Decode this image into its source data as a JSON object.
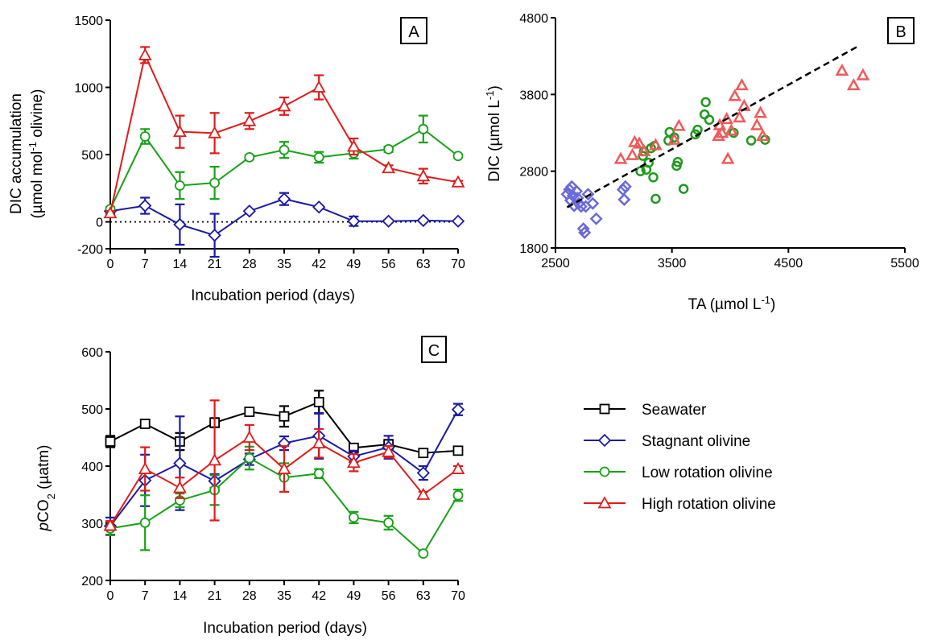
{
  "colors": {
    "seawater": "#000000",
    "stagnant": "#1a1aa8",
    "low_rotation": "#17a117",
    "high_rotation": "#e01b1b",
    "scatter_stagnant": "#6a6ad8",
    "scatter_low": "#1e9a1e",
    "scatter_high": "#ef5a5a"
  },
  "legend": {
    "entries": [
      {
        "key": "seawater",
        "label": "Seawater",
        "marker": "square"
      },
      {
        "key": "stagnant",
        "label": "Stagnant olivine",
        "marker": "diamond"
      },
      {
        "key": "low_rotation",
        "label": "Low rotation olivine",
        "marker": "circle"
      },
      {
        "key": "high_rotation",
        "label": "High rotation olivine",
        "marker": "triangle"
      }
    ]
  },
  "chart_data": [
    {
      "panel": "A",
      "type": "line",
      "xlabel": "Incubation period (days)",
      "ylabel": "DIC accumulation",
      "ylabel_unit": "(µmol mol",
      "ylabel_sup": "-1",
      "ylabel_unit_end": " olivine)",
      "x_ticks": [
        "0",
        "7",
        "14",
        "21",
        "28",
        "35",
        "42",
        "49",
        "56",
        "63",
        "70"
      ],
      "y_ticks": [
        "-200",
        "0",
        "500",
        "1000",
        "1500"
      ],
      "xlim": [
        0,
        70
      ],
      "ylim": [
        -200,
        1500
      ],
      "zero_line": true,
      "x": [
        0,
        7,
        14,
        21,
        28,
        35,
        42,
        49,
        56,
        63,
        70
      ],
      "series": [
        {
          "key": "stagnant",
          "marker": "diamond",
          "values": [
            80,
            120,
            -20,
            -100,
            80,
            170,
            110,
            5,
            5,
            10,
            5
          ],
          "errors": [
            20,
            60,
            150,
            160,
            10,
            45,
            10,
            35,
            10,
            10,
            5
          ]
        },
        {
          "key": "low_rotation",
          "marker": "circle",
          "values": [
            95,
            635,
            270,
            290,
            480,
            535,
            480,
            510,
            540,
            690,
            490
          ],
          "errors": [
            15,
            55,
            100,
            120,
            15,
            60,
            40,
            40,
            20,
            100,
            10
          ]
        },
        {
          "key": "high_rotation",
          "marker": "triangle",
          "values": [
            65,
            1240,
            670,
            660,
            750,
            860,
            1000,
            560,
            400,
            340,
            295
          ],
          "errors": [
            15,
            60,
            120,
            150,
            60,
            65,
            90,
            60,
            20,
            55,
            10
          ]
        }
      ]
    },
    {
      "panel": "B",
      "type": "scatter",
      "xlabel": "TA (µmol L",
      "xlabel_sup": "-1",
      "xlabel_end": ")",
      "ylabel": "DIC (µmol L",
      "ylabel_sup": "-1",
      "ylabel_end": ")",
      "x_ticks": [
        "2500",
        "3500",
        "4500",
        "5500"
      ],
      "y_ticks": [
        "1800",
        "2800",
        "3800",
        "4800"
      ],
      "xlim": [
        2500,
        5500
      ],
      "ylim": [
        1800,
        4800
      ],
      "trendline": {
        "x": [
          2600,
          5100
        ],
        "y": [
          2330,
          4430
        ]
      },
      "series": [
        {
          "key": "scatter_stagnant",
          "marker": "diamond",
          "points": [
            [
              2600,
              2500
            ],
            [
              2620,
              2560
            ],
            [
              2630,
              2420
            ],
            [
              2640,
              2600
            ],
            [
              2650,
              2480
            ],
            [
              2660,
              2350
            ],
            [
              2680,
              2540
            ],
            [
              2690,
              2450
            ],
            [
              2700,
              2380
            ],
            [
              2720,
              2340
            ],
            [
              2740,
              2050
            ],
            [
              2750,
              2000
            ],
            [
              2760,
              2340
            ],
            [
              2780,
              2500
            ],
            [
              2820,
              2380
            ],
            [
              2850,
              2180
            ],
            [
              3080,
              2560
            ],
            [
              3090,
              2430
            ],
            [
              3100,
              2600
            ]
          ]
        },
        {
          "key": "scatter_low",
          "marker": "circle",
          "points": [
            [
              3230,
              2800
            ],
            [
              3250,
              3000
            ],
            [
              3260,
              3060
            ],
            [
              3280,
              2820
            ],
            [
              3300,
              2910
            ],
            [
              3320,
              3100
            ],
            [
              3340,
              2720
            ],
            [
              3350,
              3130
            ],
            [
              3360,
              2440
            ],
            [
              3470,
              3200
            ],
            [
              3480,
              3310
            ],
            [
              3520,
              3240
            ],
            [
              3540,
              2870
            ],
            [
              3550,
              2920
            ],
            [
              3600,
              2570
            ],
            [
              3700,
              3280
            ],
            [
              3720,
              3340
            ],
            [
              3780,
              3540
            ],
            [
              3790,
              3700
            ],
            [
              3820,
              3470
            ],
            [
              4030,
              3300
            ],
            [
              4180,
              3200
            ],
            [
              4300,
              3210
            ]
          ]
        },
        {
          "key": "scatter_high",
          "marker": "triangle",
          "points": [
            [
              3060,
              2960
            ],
            [
              3160,
              3010
            ],
            [
              3180,
              3180
            ],
            [
              3220,
              3160
            ],
            [
              3260,
              3060
            ],
            [
              3360,
              3140
            ],
            [
              3520,
              3210
            ],
            [
              3560,
              3390
            ],
            [
              3900,
              3260
            ],
            [
              3910,
              3400
            ],
            [
              3930,
              3300
            ],
            [
              3970,
              3480
            ],
            [
              3980,
              2960
            ],
            [
              4010,
              3330
            ],
            [
              4040,
              3780
            ],
            [
              4080,
              3500
            ],
            [
              4100,
              3920
            ],
            [
              4120,
              3650
            ],
            [
              4230,
              3400
            ],
            [
              4260,
              3560
            ],
            [
              4280,
              3260
            ],
            [
              4960,
              4110
            ],
            [
              5060,
              3920
            ],
            [
              5140,
              4050
            ]
          ]
        }
      ]
    },
    {
      "panel": "C",
      "type": "line",
      "xlabel": "Incubation period (days)",
      "ylabel_italic": "p",
      "ylabel": "CO",
      "ylabel_sub": "2",
      "ylabel_end": " (µatm)",
      "x_ticks": [
        "0",
        "7",
        "14",
        "21",
        "28",
        "35",
        "42",
        "49",
        "56",
        "63",
        "70"
      ],
      "y_ticks": [
        "200",
        "300",
        "400",
        "500",
        "600"
      ],
      "xlim": [
        0,
        70
      ],
      "ylim": [
        200,
        600
      ],
      "x": [
        0,
        7,
        14,
        21,
        28,
        35,
        42,
        49,
        56,
        63,
        70
      ],
      "series": [
        {
          "key": "seawater",
          "marker": "square",
          "values": [
            443,
            474,
            443,
            476,
            495,
            487,
            512,
            432,
            438,
            423,
            427
          ],
          "errors": [
            10,
            3,
            15,
            8,
            3,
            18,
            20,
            5,
            8,
            3,
            3
          ]
        },
        {
          "key": "stagnant",
          "marker": "diamond",
          "values": [
            295,
            375,
            405,
            374,
            412,
            440,
            453,
            417,
            433,
            388,
            499
          ],
          "errors": [
            15,
            45,
            82,
            12,
            10,
            12,
            40,
            10,
            20,
            12,
            10
          ]
        },
        {
          "key": "low_rotation",
          "marker": "circle",
          "values": [
            291,
            301,
            340,
            358,
            414,
            380,
            387,
            310,
            301,
            247,
            349
          ],
          "errors": [
            12,
            48,
            12,
            26,
            20,
            25,
            8,
            10,
            12,
            3,
            10
          ]
        },
        {
          "key": "high_rotation",
          "marker": "triangle",
          "values": [
            296,
            395,
            362,
            410,
            450,
            395,
            440,
            406,
            425,
            350,
            395
          ],
          "errors": [
            8,
            38,
            18,
            105,
            22,
            40,
            25,
            15,
            10,
            5,
            5
          ]
        }
      ]
    }
  ]
}
